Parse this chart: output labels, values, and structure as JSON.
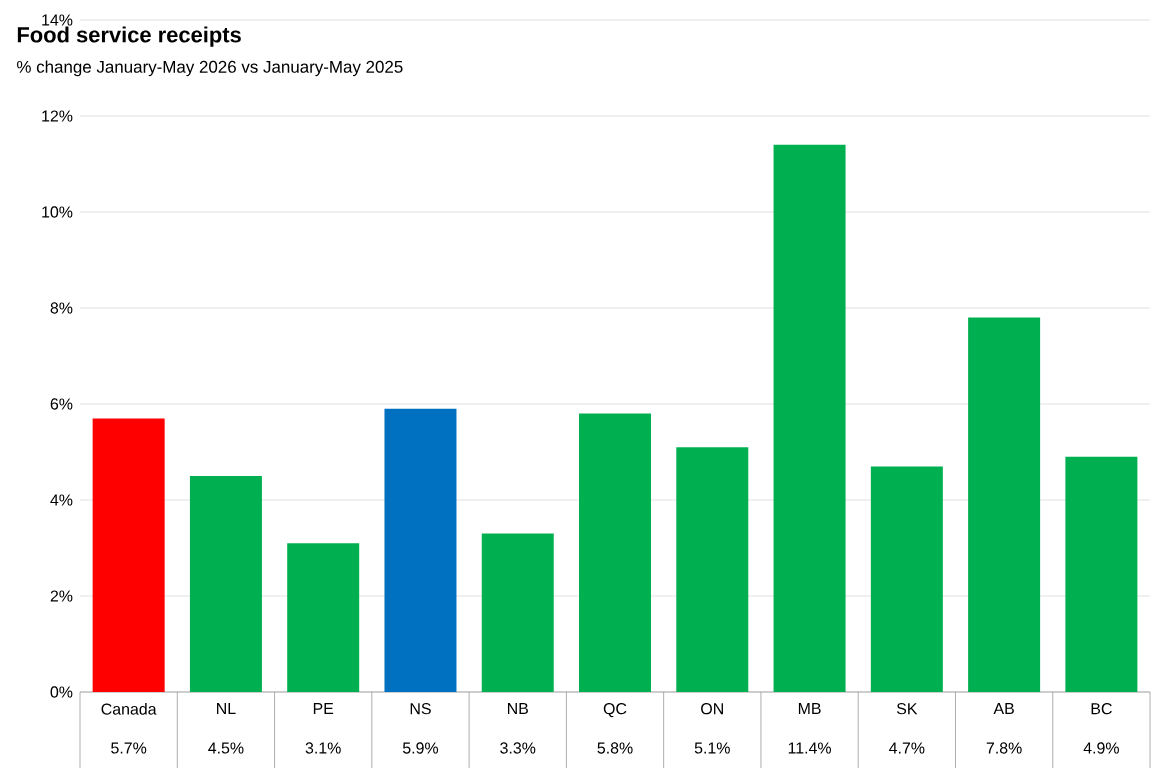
{
  "chart_data": {
    "type": "bar",
    "title": "Food service receipts",
    "subtitle": "% change January-May 2026 vs January-May 2025",
    "categories": [
      "Canada",
      "NL",
      "PE",
      "NS",
      "NB",
      "QC",
      "ON",
      "MB",
      "SK",
      "AB",
      "BC"
    ],
    "values": [
      5.7,
      4.5,
      3.1,
      5.9,
      3.3,
      5.8,
      5.1,
      11.4,
      4.7,
      7.8,
      4.9
    ],
    "value_labels": [
      "5.7%",
      "4.5%",
      "3.1%",
      "5.9%",
      "3.3%",
      "5.8%",
      "5.1%",
      "11.4%",
      "4.7%",
      "7.8%",
      "4.9%"
    ],
    "colors": [
      "#ff0000",
      "#00b050",
      "#00b050",
      "#0070c0",
      "#00b050",
      "#00b050",
      "#00b050",
      "#00b050",
      "#00b050",
      "#00b050",
      "#00b050"
    ],
    "ylim": [
      0,
      14
    ],
    "yticks": [
      {
        "value": 0,
        "label": "0%"
      },
      {
        "value": 2,
        "label": "2%"
      },
      {
        "value": 4,
        "label": "4%"
      },
      {
        "value": 6,
        "label": "6%"
      },
      {
        "value": 8,
        "label": "8%"
      },
      {
        "value": 10,
        "label": "10%"
      },
      {
        "value": 12,
        "label": "12%"
      },
      {
        "value": 14,
        "label": "14%"
      }
    ],
    "grid": "y"
  }
}
